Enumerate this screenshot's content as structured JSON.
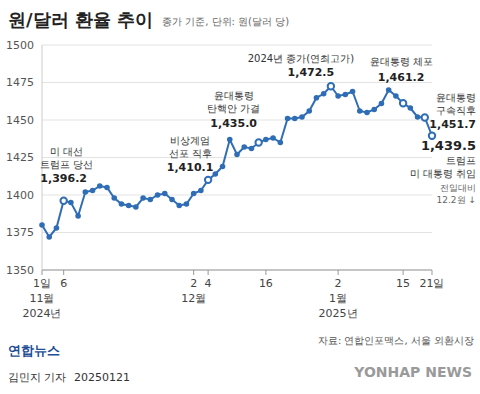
{
  "chart_data": {
    "type": "line",
    "title": "원/달러 환율 추이",
    "subtitle": "종가 기준, 단위: 원(달러 당)",
    "source": "자료: 연합인포맥스, 서울 외환시장",
    "footer": {
      "logo": "연합뉴스",
      "reporter": "김민지 기자",
      "date": "20250121",
      "watermark": "YONHAP NEWS"
    },
    "categories": [
      "1일\n11월\n2024년",
      null,
      null,
      "6",
      null,
      null,
      null,
      null,
      null,
      null,
      null,
      null,
      null,
      null,
      null,
      null,
      null,
      null,
      null,
      null,
      null,
      "2\n12월",
      null,
      "4",
      null,
      null,
      null,
      null,
      null,
      null,
      null,
      "16",
      null,
      null,
      null,
      null,
      null,
      null,
      null,
      null,
      null,
      "2\n1월\n2025년",
      null,
      null,
      null,
      null,
      null,
      null,
      null,
      null,
      "15",
      null,
      null,
      null,
      "21일"
    ],
    "values": [
      1380,
      1372,
      1378,
      1396.2,
      1395,
      1386,
      1402,
      1403,
      1406,
      1405,
      1398,
      1394,
      1393,
      1392,
      1398,
      1397,
      1400,
      1401,
      1397,
      1393,
      1394,
      1401,
      1403,
      1410.1,
      1414,
      1419,
      1437,
      1427,
      1432,
      1431,
      1435.0,
      1437,
      1438,
      1435,
      1451,
      1451,
      1452,
      1456,
      1464.8,
      1467.5,
      1472.5,
      1466,
      1467,
      1469,
      1456,
      1455,
      1457,
      1461,
      1470,
      1466,
      1461.2,
      1458,
      1452,
      1451.7,
      1439.5
    ],
    "color": "#2f6db5",
    "marker": "circle",
    "ylim": [
      1350,
      1500
    ],
    "yticks": [
      1350,
      1375,
      1400,
      1425,
      1450,
      1475,
      1500
    ],
    "grid": true,
    "annotations": [
      {
        "index": 3,
        "text": "미 대선\n트럼프 당선",
        "label": "1,396.2"
      },
      {
        "index": 23,
        "text": "비상계엄\n선포 직후",
        "label": "1,410.1"
      },
      {
        "index": 30,
        "text": "윤대통령\n탄핵안 가결",
        "label": "1,435.0"
      },
      {
        "index": 40,
        "text": "2024년 종가(연최고가)",
        "label": "1,472.5"
      },
      {
        "index": 50,
        "text": "윤대통령 체포",
        "label": "1,461.2"
      },
      {
        "index": 53,
        "text": "윤대통령\n구속직후",
        "label": "1,451.7"
      },
      {
        "index": 54,
        "text": "트럼프\n미 대통령 취임",
        "label": "1,439.5",
        "note": "전일대비\n12.2원 ↓"
      }
    ]
  }
}
